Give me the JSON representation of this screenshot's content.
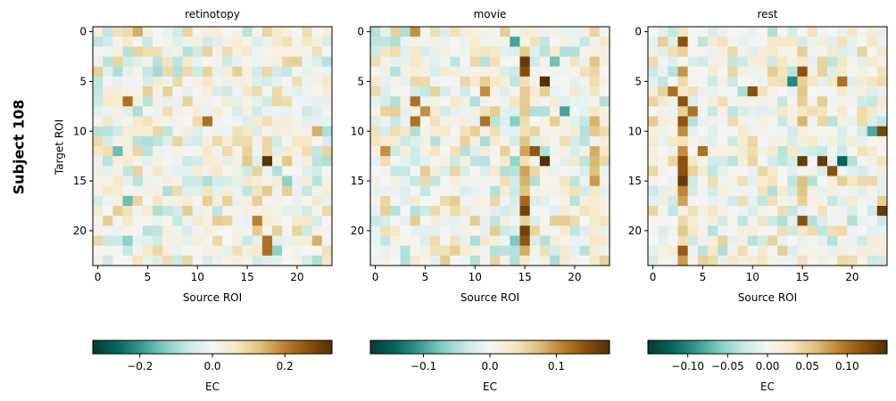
{
  "figure": {
    "subject_label": "Subject 108",
    "ylabel": "Target ROI",
    "xlabel": "Source ROI",
    "colorbar_label": "EC",
    "colormap": "BrBG_r",
    "colormap_stops": [
      "#003c30",
      "#01665e",
      "#35978f",
      "#80cdc1",
      "#c7eae5",
      "#f5f5f5",
      "#f6e8c3",
      "#dfc27d",
      "#bf812d",
      "#8c510a",
      "#543005"
    ]
  },
  "chart_data": [
    {
      "type": "heatmap",
      "title": "retinotopy",
      "xlabel": "Source ROI",
      "ylabel": "Target ROI",
      "n": 24,
      "xticks": [
        0,
        5,
        10,
        15,
        20
      ],
      "yticks": [
        0,
        5,
        10,
        15,
        20
      ],
      "colorbar": {
        "label": "EC",
        "vmin": -0.33,
        "vmax": 0.33,
        "ticks": [
          -0.2,
          0.0,
          0.2
        ],
        "tick_labels": [
          "−0.2",
          "0.0",
          "0.2"
        ]
      },
      "strong_cells": [
        {
          "row": 7,
          "col": 3,
          "value": 0.22
        },
        {
          "row": 9,
          "col": 11,
          "value": 0.22
        },
        {
          "row": 13,
          "col": 17,
          "value": 0.32
        },
        {
          "row": 21,
          "col": 17,
          "value": 0.22
        },
        {
          "row": 22,
          "col": 17,
          "value": 0.22
        },
        {
          "row": 19,
          "col": 16,
          "value": 0.2
        },
        {
          "row": 0,
          "col": 4,
          "value": 0.15
        },
        {
          "row": 10,
          "col": 22,
          "value": 0.15
        },
        {
          "row": 21,
          "col": 22,
          "value": 0.15
        },
        {
          "row": 13,
          "col": 15,
          "value": 0.12
        },
        {
          "row": 13,
          "col": 19,
          "value": 0.12
        },
        {
          "row": 16,
          "col": 17,
          "value": 0.12
        },
        {
          "row": 12,
          "col": 2,
          "value": -0.15
        },
        {
          "row": 17,
          "col": 3,
          "value": -0.15
        },
        {
          "row": 21,
          "col": 3,
          "value": -0.12
        },
        {
          "row": 22,
          "col": 18,
          "value": -0.12
        },
        {
          "row": 15,
          "col": 19,
          "value": -0.12
        },
        {
          "row": 4,
          "col": 6,
          "value": -0.1
        }
      ]
    },
    {
      "type": "heatmap",
      "title": "movie",
      "xlabel": "Source ROI",
      "ylabel": "",
      "n": 24,
      "xticks": [
        0,
        5,
        10,
        15,
        20
      ],
      "yticks": [
        0,
        5,
        10,
        15,
        20
      ],
      "colorbar": {
        "label": "EC",
        "vmin": -0.18,
        "vmax": 0.18,
        "ticks": [
          -0.1,
          0.0,
          0.1
        ],
        "tick_labels": [
          "−0.1",
          "0.0",
          "0.1"
        ]
      },
      "column_bias": [
        {
          "col": 15,
          "value": 0.07
        },
        {
          "col": 22,
          "value": 0.04
        },
        {
          "col": 14,
          "value": -0.03
        }
      ],
      "strong_cells": [
        {
          "row": 3,
          "col": 15,
          "value": 0.17
        },
        {
          "row": 4,
          "col": 15,
          "value": 0.15
        },
        {
          "row": 5,
          "col": 17,
          "value": 0.18
        },
        {
          "row": 13,
          "col": 17,
          "value": 0.18
        },
        {
          "row": 12,
          "col": 16,
          "value": 0.14
        },
        {
          "row": 20,
          "col": 15,
          "value": 0.16
        },
        {
          "row": 18,
          "col": 15,
          "value": 0.16
        },
        {
          "row": 21,
          "col": 15,
          "value": 0.14
        },
        {
          "row": 7,
          "col": 4,
          "value": 0.12
        },
        {
          "row": 8,
          "col": 5,
          "value": 0.1
        },
        {
          "row": 9,
          "col": 11,
          "value": 0.12
        },
        {
          "row": 6,
          "col": 11,
          "value": 0.1
        },
        {
          "row": 12,
          "col": 1,
          "value": 0.1
        },
        {
          "row": 0,
          "col": 4,
          "value": 0.1
        },
        {
          "row": 9,
          "col": 4,
          "value": 0.12
        },
        {
          "row": 1,
          "col": 14,
          "value": -0.1
        },
        {
          "row": 8,
          "col": 19,
          "value": -0.1
        },
        {
          "row": 3,
          "col": 18,
          "value": -0.08
        }
      ]
    },
    {
      "type": "heatmap",
      "title": "rest",
      "xlabel": "Source ROI",
      "ylabel": "",
      "n": 24,
      "xticks": [
        0,
        5,
        10,
        15,
        20
      ],
      "yticks": [
        0,
        5,
        10,
        15,
        20
      ],
      "colorbar": {
        "label": "EC",
        "vmin": -0.15,
        "vmax": 0.15,
        "ticks": [
          -0.1,
          -0.05,
          0.0,
          0.05,
          0.1
        ],
        "tick_labels": [
          "−0.10",
          "−0.05",
          "0.00",
          "0.05",
          "0.10"
        ]
      },
      "column_bias": [
        {
          "col": 3,
          "value": 0.06
        },
        {
          "col": 15,
          "value": 0.02
        }
      ],
      "strong_cells": [
        {
          "row": 1,
          "col": 3,
          "value": 0.12
        },
        {
          "row": 7,
          "col": 3,
          "value": 0.12
        },
        {
          "row": 13,
          "col": 3,
          "value": 0.12
        },
        {
          "row": 14,
          "col": 3,
          "value": 0.12
        },
        {
          "row": 15,
          "col": 3,
          "value": 0.14
        },
        {
          "row": 6,
          "col": 2,
          "value": 0.1
        },
        {
          "row": 8,
          "col": 4,
          "value": 0.1
        },
        {
          "row": 6,
          "col": 10,
          "value": 0.12
        },
        {
          "row": 13,
          "col": 15,
          "value": 0.14
        },
        {
          "row": 13,
          "col": 17,
          "value": 0.14
        },
        {
          "row": 4,
          "col": 15,
          "value": 0.12
        },
        {
          "row": 10,
          "col": 23,
          "value": 0.13
        },
        {
          "row": 18,
          "col": 23,
          "value": 0.14
        },
        {
          "row": 19,
          "col": 15,
          "value": 0.12
        },
        {
          "row": 14,
          "col": 18,
          "value": 0.12
        },
        {
          "row": 5,
          "col": 19,
          "value": 0.1
        },
        {
          "row": 12,
          "col": 5,
          "value": 0.1
        },
        {
          "row": 13,
          "col": 19,
          "value": -0.12
        },
        {
          "row": 5,
          "col": 14,
          "value": -0.1
        },
        {
          "row": 10,
          "col": 22,
          "value": -0.08
        }
      ]
    }
  ]
}
